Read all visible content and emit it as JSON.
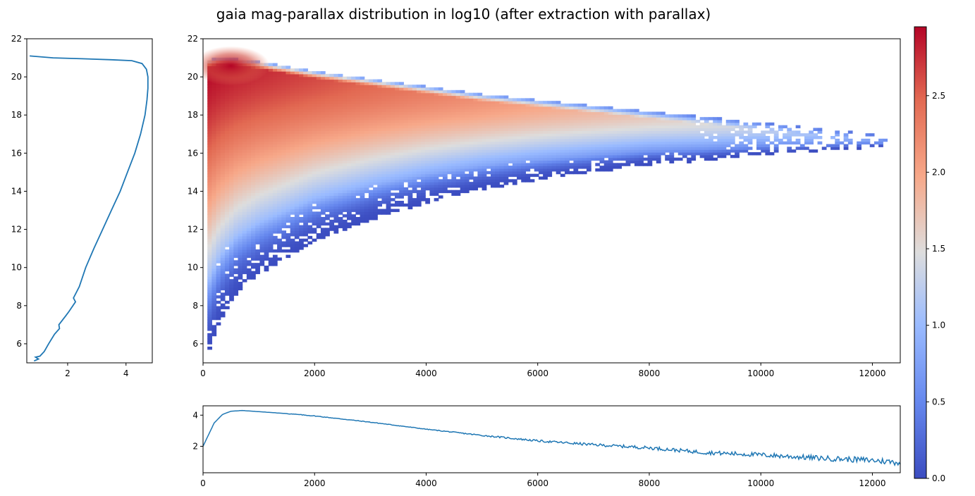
{
  "figure": {
    "title": "gaia mag-parallax distribution in log10 (after extraction with parallax)"
  },
  "chart_data": [
    {
      "type": "heatmap",
      "panel": "main",
      "xlim": [
        0,
        12500
      ],
      "ylim": [
        5,
        22
      ],
      "xticks": [
        0,
        2000,
        4000,
        6000,
        8000,
        10000,
        12000
      ],
      "yticks": [
        6,
        8,
        10,
        12,
        14,
        16,
        18,
        20,
        22
      ],
      "colormap": "coolwarm",
      "grid": false,
      "envelope": {
        "x": [
          100,
          300,
          600,
          1000,
          2000,
          3000,
          4000,
          5000,
          6000,
          7000,
          8000,
          9000,
          10000,
          11000,
          12000,
          12450
        ],
        "upper": [
          20.9,
          21.0,
          20.95,
          20.8,
          20.3,
          19.9,
          19.5,
          19.1,
          18.8,
          18.5,
          18.2,
          17.9,
          17.6,
          17.3,
          17.0,
          16.8
        ],
        "lower": [
          5.6,
          7.2,
          8.6,
          9.6,
          11.4,
          12.5,
          13.4,
          14.1,
          14.6,
          15.0,
          15.4,
          15.6,
          15.9,
          16.1,
          16.3,
          16.4
        ]
      },
      "peak": {
        "x": 500,
        "y": 20.8,
        "value": 2.95
      }
    },
    {
      "type": "line",
      "panel": "left-marginal",
      "xlim": [
        0.6,
        4.9
      ],
      "ylim": [
        5,
        22
      ],
      "xticks": [
        2,
        4
      ],
      "yticks": [
        6,
        8,
        10,
        12,
        14,
        16,
        18,
        20,
        22
      ],
      "color": "#1f77b4",
      "points": [
        [
          0.7,
          21.1
        ],
        [
          1.5,
          21.0
        ],
        [
          2.5,
          20.95
        ],
        [
          3.5,
          20.9
        ],
        [
          4.2,
          20.85
        ],
        [
          4.55,
          20.7
        ],
        [
          4.7,
          20.4
        ],
        [
          4.75,
          20.0
        ],
        [
          4.75,
          19.4
        ],
        [
          4.72,
          18.8
        ],
        [
          4.65,
          18.0
        ],
        [
          4.5,
          17.0
        ],
        [
          4.3,
          16.0
        ],
        [
          4.05,
          15.0
        ],
        [
          3.8,
          14.0
        ],
        [
          3.5,
          13.0
        ],
        [
          3.2,
          12.0
        ],
        [
          2.9,
          11.0
        ],
        [
          2.62,
          10.0
        ],
        [
          2.4,
          9.0
        ],
        [
          2.2,
          8.4
        ],
        [
          2.27,
          8.2
        ],
        [
          2.05,
          7.7
        ],
        [
          1.95,
          7.5
        ],
        [
          1.7,
          7.0
        ],
        [
          1.72,
          6.8
        ],
        [
          1.55,
          6.5
        ],
        [
          1.35,
          6.0
        ],
        [
          1.2,
          5.6
        ],
        [
          1.05,
          5.35
        ],
        [
          0.9,
          5.3
        ],
        [
          1.0,
          5.2
        ],
        [
          0.85,
          5.1
        ]
      ]
    },
    {
      "type": "line",
      "panel": "bottom-marginal",
      "xlim": [
        0,
        12500
      ],
      "ylim": [
        0.3,
        4.6
      ],
      "xticks": [
        0,
        2000,
        4000,
        6000,
        8000,
        10000,
        12000
      ],
      "yticks": [
        2,
        4
      ],
      "color": "#1f77b4",
      "points": [
        [
          0,
          2.0
        ],
        [
          80,
          2.6
        ],
        [
          200,
          3.5
        ],
        [
          350,
          4.05
        ],
        [
          500,
          4.25
        ],
        [
          700,
          4.3
        ],
        [
          900,
          4.25
        ],
        [
          1500,
          4.1
        ],
        [
          2000,
          3.95
        ],
        [
          3000,
          3.55
        ],
        [
          4000,
          3.1
        ],
        [
          5000,
          2.7
        ],
        [
          6000,
          2.35
        ],
        [
          7000,
          2.1
        ],
        [
          8000,
          1.9
        ],
        [
          9000,
          1.6
        ],
        [
          10000,
          1.45
        ],
        [
          11000,
          1.25
        ],
        [
          12000,
          1.1
        ],
        [
          12500,
          0.95
        ]
      ]
    },
    {
      "type": "colorbar",
      "panel": "colorbar",
      "range": [
        0.0,
        2.95
      ],
      "ticks": [
        0.0,
        0.5,
        1.0,
        1.5,
        2.0,
        2.5
      ],
      "tick_labels": [
        "0.0",
        "0.5",
        "1.0",
        "1.5",
        "2.0",
        "2.5"
      ],
      "colormap": "coolwarm"
    }
  ]
}
